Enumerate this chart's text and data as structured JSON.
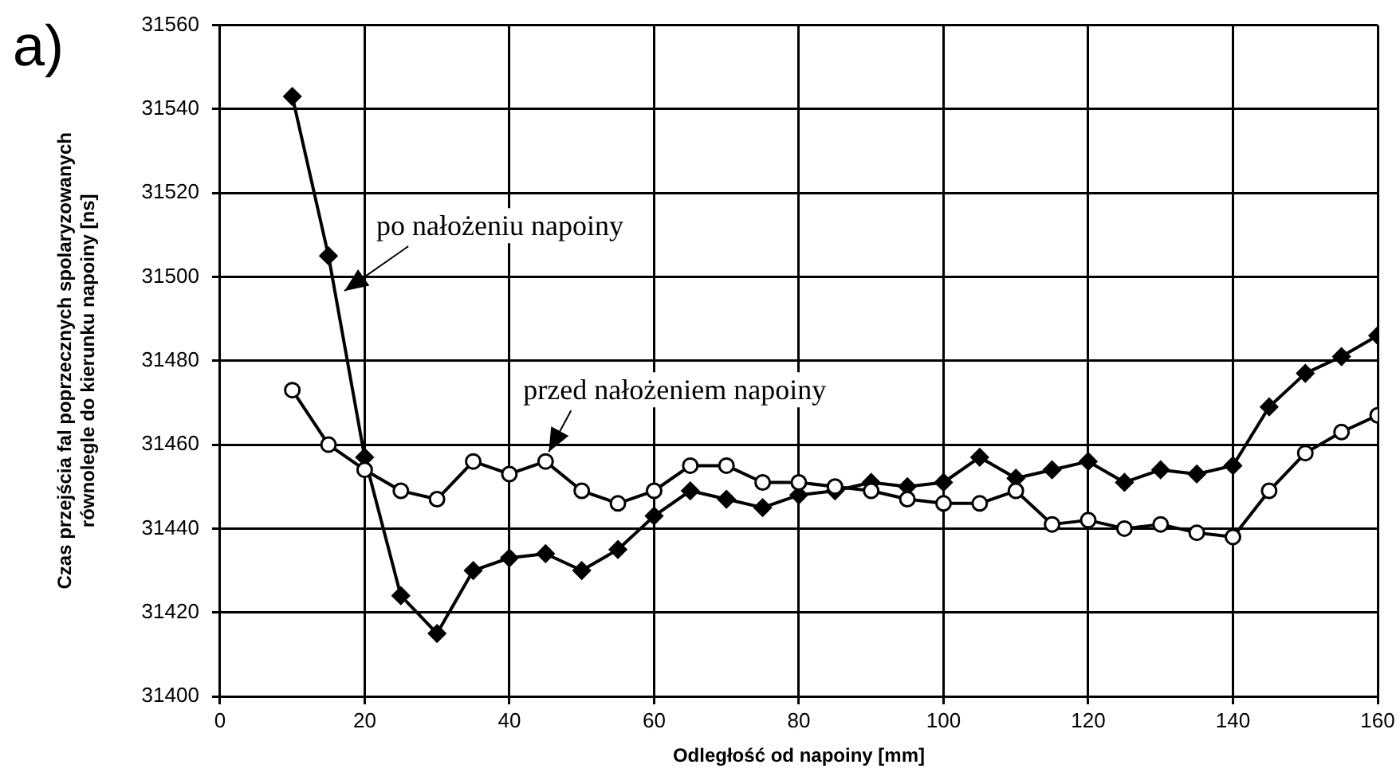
{
  "chart_data": {
    "type": "line",
    "xlabel": "Odległość od napoiny [mm]",
    "ylabel": "Czas przejścia fal poprzecznych spolaryzowanych równolegle do kierunku napoiny [ns]",
    "annotations": [
      "a)"
    ],
    "x": [
      10,
      15,
      20,
      25,
      30,
      35,
      40,
      45,
      50,
      55,
      60,
      65,
      70,
      75,
      80,
      85,
      90,
      95,
      100,
      105,
      110,
      115,
      120,
      125,
      130,
      135,
      140,
      145,
      150,
      155,
      160
    ],
    "xlim": [
      0,
      160
    ],
    "xticks": [
      0,
      20,
      40,
      60,
      80,
      100,
      120,
      140,
      160
    ],
    "ylim": [
      31400,
      31560
    ],
    "yticks": [
      31400,
      31420,
      31440,
      31460,
      31480,
      31500,
      31520,
      31540,
      31560
    ],
    "grid": true,
    "legend": false,
    "line_style": "solid",
    "series": [
      {
        "name": "po nałożeniu napoiny",
        "color": "#000000",
        "marker": "diamond",
        "values": [
          31543,
          31505,
          31457,
          31424,
          31415,
          31430,
          31433,
          31434,
          31430,
          31435,
          31443,
          31449,
          31447,
          31445,
          31448,
          31449,
          31451,
          31450,
          31451,
          31457,
          31452,
          31454,
          31456,
          31451,
          31454,
          31453,
          31455,
          31469,
          31477,
          31481,
          31486
        ]
      },
      {
        "name": "przed nałożeniem napoiny",
        "color": "#000000",
        "marker": "circle",
        "values": [
          31473,
          31460,
          31454,
          31449,
          31447,
          31456,
          31453,
          31456,
          31449,
          31446,
          31449,
          31455,
          31455,
          31451,
          31451,
          31450,
          31449,
          31447,
          31446,
          31446,
          31449,
          31441,
          31442,
          31440,
          31441,
          31439,
          31438,
          31449,
          31458,
          31463,
          31467
        ]
      }
    ]
  }
}
